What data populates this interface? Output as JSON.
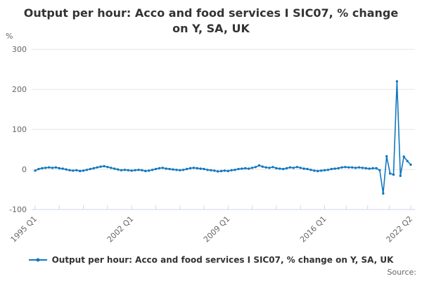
{
  "title_lines": [
    "Output per hour: Acco and food services I SIC07, % change",
    "on Y, SA, UK"
  ],
  "y_axis_unit_label": "%",
  "legend": {
    "label": "Output per hour: Acco and food services I SIC07, % change on Y, SA, UK"
  },
  "source_label": "Source:",
  "colors": {
    "series": "#1178be",
    "gridline": "#e6e6e6",
    "axis_line": "#ccd6eb",
    "axis_text": "#666666",
    "title_text": "#333333",
    "legend_text": "#333333",
    "source_text": "#666666"
  },
  "chart_data": {
    "type": "line",
    "title": "Output per hour: Acco and food services I SIC07, % change on Y, SA, UK",
    "xlabel": "",
    "ylabel": "%",
    "ylim": [
      -100,
      300
    ],
    "y_ticks": [
      300,
      200,
      100,
      0,
      -100
    ],
    "x_period": {
      "start": "1995 Q1",
      "end": "2022 Q2",
      "frequency": "quarterly"
    },
    "x_ticks": [
      {
        "label": "1995 Q1",
        "index": 0
      },
      {
        "label": "2002 Q1",
        "index": 28
      },
      {
        "label": "2009 Q1",
        "index": 56
      },
      {
        "label": "2016 Q1",
        "index": 84
      },
      {
        "label": "2022 Q2",
        "index": 109
      }
    ],
    "grid": true,
    "legend_position": "bottom",
    "series": [
      {
        "name": "Output per hour: Acco and food services I SIC07, % change on Y, SA, UK",
        "color": "#1178be",
        "values": [
          -3,
          1,
          3,
          4,
          5,
          4,
          5,
          3,
          2,
          0,
          -2,
          -3,
          -2,
          -4,
          -3,
          -1,
          1,
          3,
          5,
          7,
          8,
          6,
          4,
          2,
          0,
          -2,
          -1,
          -2,
          -3,
          -2,
          -1,
          -2,
          -4,
          -3,
          -1,
          1,
          3,
          4,
          2,
          1,
          0,
          -1,
          -2,
          -1,
          1,
          3,
          4,
          3,
          2,
          1,
          -1,
          -2,
          -3,
          -5,
          -4,
          -3,
          -4,
          -2,
          -1,
          1,
          2,
          3,
          2,
          4,
          6,
          10,
          7,
          5,
          4,
          6,
          3,
          2,
          1,
          3,
          5,
          4,
          6,
          4,
          2,
          1,
          -1,
          -3,
          -4,
          -3,
          -2,
          -1,
          1,
          2,
          3,
          5,
          6,
          5,
          5,
          4,
          5,
          4,
          3,
          2,
          3,
          3,
          -2,
          -60,
          33,
          -10,
          -13,
          220,
          -16,
          32,
          21,
          12
        ]
      }
    ]
  }
}
